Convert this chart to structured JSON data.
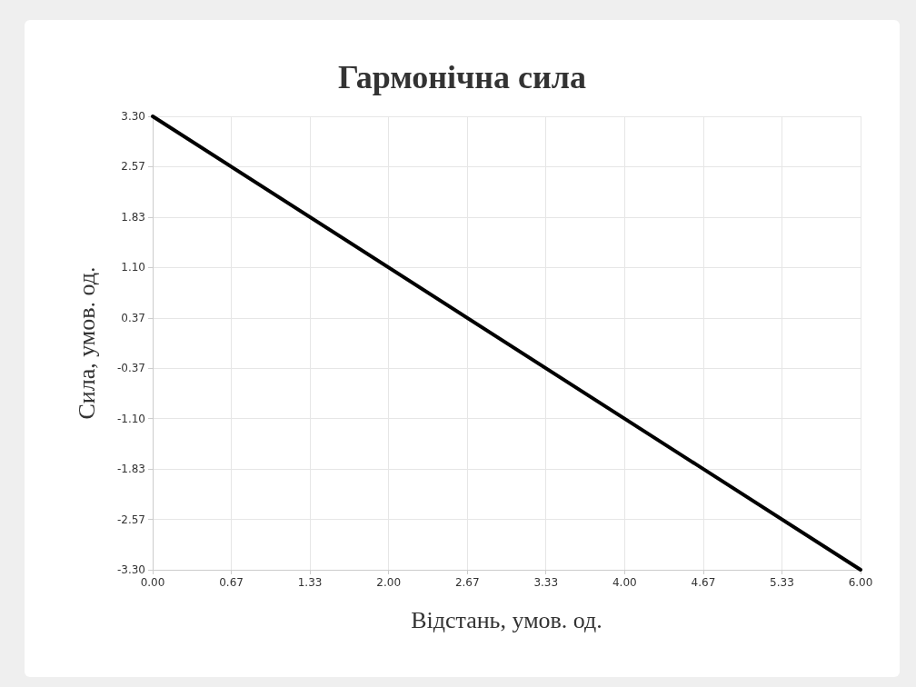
{
  "chart_data": {
    "type": "line",
    "title": "Гармонічна сила",
    "xlabel": "Відстань, умов. од.",
    "ylabel": "Сила, умов. од.",
    "x": [
      0,
      6
    ],
    "series": [
      {
        "color": "#000000",
        "values": [
          3.3,
          -3.3
        ]
      }
    ],
    "xlim": [
      0,
      6
    ],
    "xticks": [
      {
        "value": 0,
        "label": "0.00"
      },
      {
        "value": 0.667,
        "label": "0.67"
      },
      {
        "value": 1.333,
        "label": "1.33"
      },
      {
        "value": 2,
        "label": "2.00"
      },
      {
        "value": 2.667,
        "label": "2.67"
      },
      {
        "value": 3.333,
        "label": "3.33"
      },
      {
        "value": 4,
        "label": "4.00"
      },
      {
        "value": 4.667,
        "label": "4.67"
      },
      {
        "value": 5.333,
        "label": "5.33"
      },
      {
        "value": 6,
        "label": "6.00"
      }
    ],
    "ylim": [
      -3.3,
      3.3
    ],
    "yticks": [
      {
        "value": -3.3,
        "label": "-3.30"
      },
      {
        "value": -2.567,
        "label": "-2.57"
      },
      {
        "value": -1.833,
        "label": "-1.83"
      },
      {
        "value": -1.1,
        "label": "-1.10"
      },
      {
        "value": -0.367,
        "label": "-0.37"
      },
      {
        "value": 0.367,
        "label": "0.37"
      },
      {
        "value": 1.1,
        "label": "1.10"
      },
      {
        "value": 1.833,
        "label": "1.83"
      },
      {
        "value": 2.567,
        "label": "2.57"
      },
      {
        "value": 3.3,
        "label": "3.30"
      }
    ],
    "grid": true,
    "marker": "none",
    "line_style": "solid"
  }
}
